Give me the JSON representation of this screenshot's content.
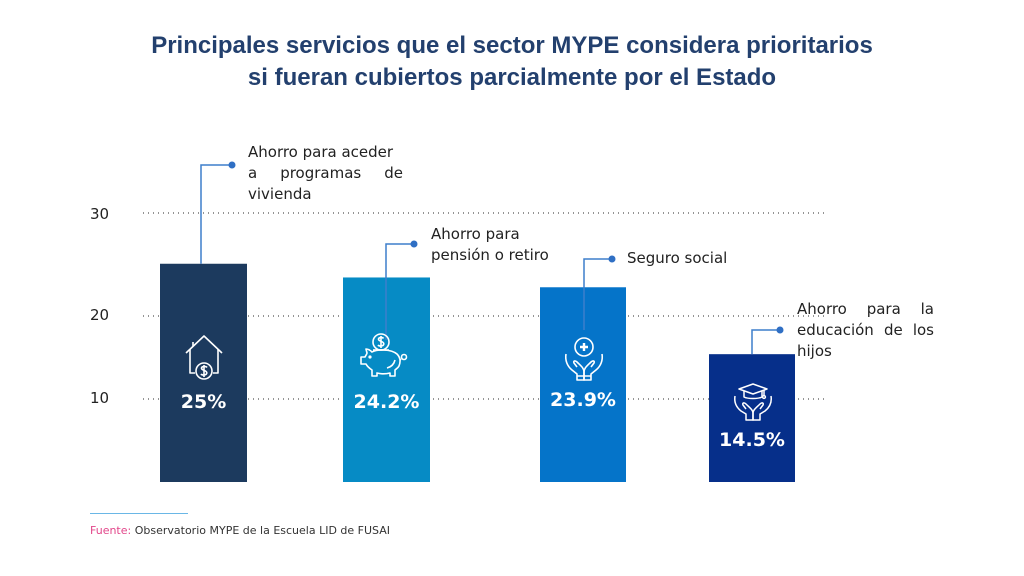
{
  "chart_data": {
    "type": "bar",
    "title": "Principales servicios que el sector MYPE considera prioritarios si fueran cubiertos parcialmente por el Estado",
    "title_lines": [
      "Principales servicios que el sector MYPE considera prioritarios",
      "si fueran cubiertos parcialmente por el Estado"
    ],
    "xlabel": "",
    "ylabel": "",
    "y_ticks": [
      "30",
      "20",
      "10"
    ],
    "grid": "dotted horizontal",
    "categories": [
      "Ahorro para aceder a programas de vivienda",
      "Ahorro para pensión o retiro",
      "Seguro social",
      "Ahorro para la educación de los hijos"
    ],
    "values": [
      25,
      24.2,
      23.9,
      14.5
    ],
    "value_labels": [
      "25%",
      "24.2%",
      "23.9%",
      "14.5%"
    ],
    "bar_colors": [
      "#1c3a5e",
      "#068bc5",
      "#0574c9",
      "#062f8a"
    ],
    "icons": [
      "house-dollar-icon",
      "piggy-bank-icon",
      "hands-health-icon",
      "hands-graduation-icon"
    ],
    "callout_color": "#3d7fcc"
  },
  "labels": [
    [
      "Ahorro para aceder",
      "a programas de",
      "vivienda"
    ],
    [
      "Ahorro para",
      "pensión o retiro"
    ],
    [
      "Seguro social"
    ],
    [
      "Ahorro para la",
      "educación de los",
      "hijos"
    ]
  ],
  "source": {
    "key": "Fuente:",
    "text": " Observatorio MYPE de la Escuela LID de FUSAI"
  }
}
